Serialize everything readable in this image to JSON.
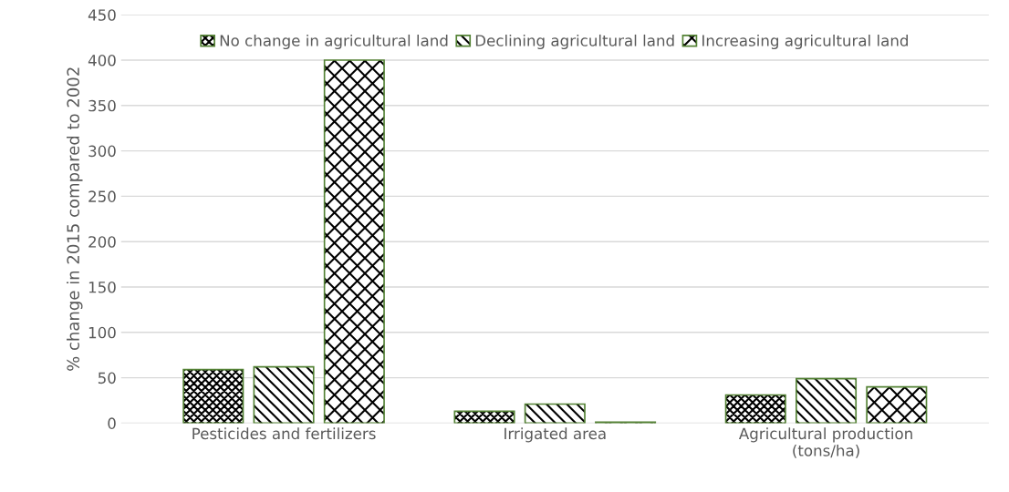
{
  "chart_data": {
    "type": "bar",
    "ylabel": "% change in 2015 compared to 2002",
    "categories": [
      "Pesticides and fertilizers",
      "Irrigated area",
      "Agricultural production\n(tons/ha)"
    ],
    "series": [
      {
        "name": "No change in agricultural land",
        "color": "#548235",
        "values": [
          59,
          13,
          31
        ]
      },
      {
        "name": "Declining agricultural land",
        "color": "#548235",
        "values": [
          62,
          21,
          49
        ]
      },
      {
        "name": "Increasing agricultural land",
        "color": "#548235",
        "values": [
          400,
          1,
          40
        ]
      }
    ],
    "ylim": [
      0,
      450
    ],
    "yticks": [
      0,
      50,
      100,
      150,
      200,
      250,
      300,
      350,
      400,
      450
    ],
    "grid": "y",
    "legend": "top"
  }
}
